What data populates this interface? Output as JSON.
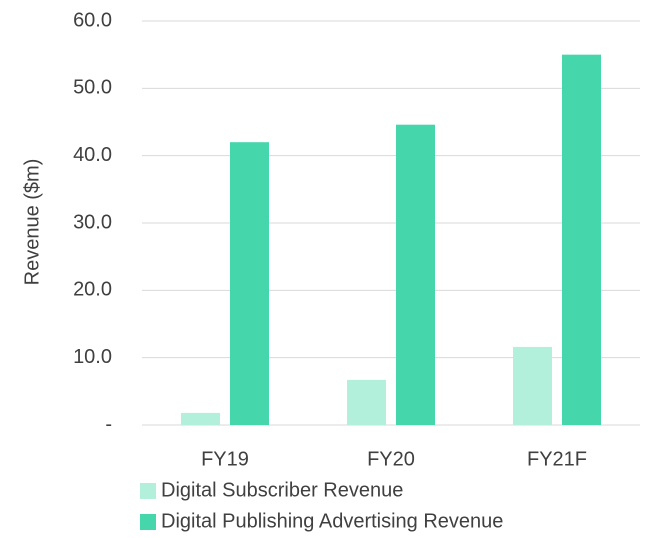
{
  "chart_data": {
    "type": "bar",
    "y_label": "Revenue ($m)",
    "categories": [
      "FY19",
      "FY20",
      "FY21F"
    ],
    "series": [
      {
        "name": "Digital Subscriber Revenue",
        "color": "#b3f0dc",
        "values": [
          1.8,
          6.7,
          11.6
        ]
      },
      {
        "name": "Digital Publishing Advertising Revenue",
        "color": "#46d6ac",
        "values": [
          42.0,
          44.6,
          55.0
        ]
      }
    ],
    "ylim": [
      0,
      60
    ],
    "yticks": [
      {
        "value": 0,
        "label": "-"
      },
      {
        "value": 10,
        "label": "10.0"
      },
      {
        "value": 20,
        "label": "20.0"
      },
      {
        "value": 30,
        "label": "30.0"
      },
      {
        "value": 40,
        "label": "40.0"
      },
      {
        "value": 50,
        "label": "50.0"
      },
      {
        "value": 60,
        "label": "60.0"
      }
    ],
    "grid": true,
    "legend": "bottom"
  }
}
